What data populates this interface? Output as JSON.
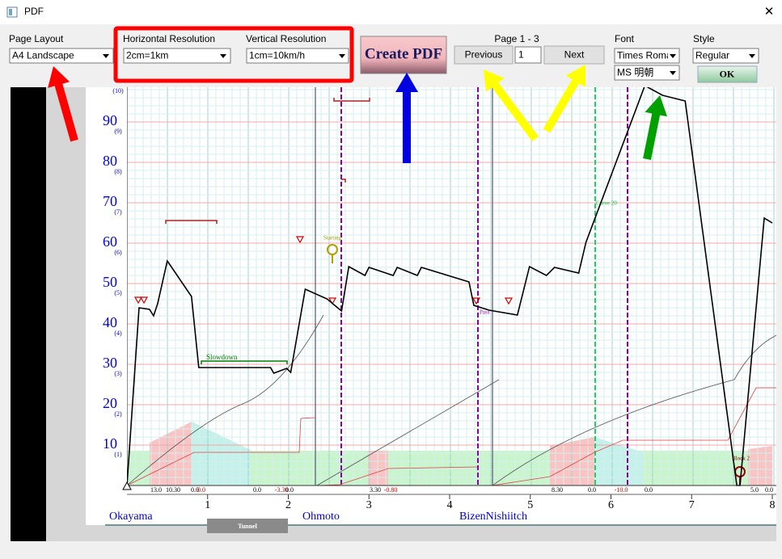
{
  "window": {
    "title": "PDF",
    "close": "✕"
  },
  "controls": {
    "page_layout": {
      "label": "Page Layout",
      "value": "A4 Landscape"
    },
    "horizontal_resolution": {
      "label": "Horizontal Resolution",
      "value": "2cm=1km"
    },
    "vertical_resolution": {
      "label": "Vertical Resolution",
      "value": "1cm=10km/h"
    },
    "create_pdf": "Create PDF",
    "page": {
      "label": "Page 1 - 3",
      "previous": "Previous",
      "number": "1",
      "next": "Next"
    },
    "font": {
      "label": "Font",
      "latin": "Times Roman",
      "japanese": "MS 明朝"
    },
    "style": {
      "label": "Style",
      "value": "Regular",
      "ok": "OK"
    }
  },
  "preview": {
    "xlim": [
      0,
      8
    ],
    "ylim": [
      0,
      100
    ],
    "xticks": [
      1,
      2,
      3,
      4,
      5,
      6,
      7,
      8
    ],
    "yticks": [
      10,
      20,
      30,
      40,
      50,
      60,
      70,
      80,
      90
    ],
    "ytick_notes": [
      "(1)",
      "(2)",
      "(3)",
      "(4)",
      "(5)",
      "(6)",
      "(7)",
      "(8)",
      "(9)",
      "(10)"
    ],
    "stations": [
      "Okayama",
      "Ohmoto",
      "BizenNishiitch"
    ],
    "tunnel": "Tunnel",
    "annotations": [
      {
        "text": "Slowdown",
        "color": "#008000"
      },
      {
        "text": "Starting",
        "color": "#a0a000"
      },
      {
        "text": "Curve 20",
        "color": "#00c040"
      },
      {
        "text": "Block 2",
        "color": "#800000"
      },
      {
        "text": "Pass",
        "color": "#9900cc"
      }
    ],
    "gradients": [
      {
        "text": "13.0",
        "color": "#000000"
      },
      {
        "text": "10.30",
        "color": "#000000"
      },
      {
        "text": "0.0",
        "color": "#000000"
      },
      {
        "text": "0.0",
        "color": "#cc0000"
      },
      {
        "text": "0.0",
        "color": "#000000"
      },
      {
        "text": "-3.30",
        "color": "#cc0000"
      },
      {
        "text": "0.0",
        "color": "#000000"
      },
      {
        "text": "3.30",
        "color": "#000000"
      },
      {
        "text": "-0.80",
        "color": "#cc0000"
      },
      {
        "text": "8.30",
        "color": "#000000"
      },
      {
        "text": "0.0",
        "color": "#000000"
      },
      {
        "text": "-10.0",
        "color": "#cc0000"
      },
      {
        "text": "0.0",
        "color": "#000000"
      },
      {
        "text": "5.0",
        "color": "#000000"
      },
      {
        "text": "0.0",
        "color": "#000000"
      }
    ],
    "speed_profile": {
      "color": "#000000",
      "x": [
        0,
        0.15,
        0.28,
        0.33,
        0.38,
        0.5,
        0.8,
        0.89,
        1.78,
        1.82,
        1.98,
        2.03,
        2.21,
        2.48,
        2.66,
        2.75,
        2.95,
        3.0,
        3.3,
        3.35,
        3.6,
        3.65,
        4.24,
        4.3,
        4.49,
        4.84,
        4.99,
        5.2,
        5.3,
        5.6,
        5.69,
        6.42,
        6.64,
        6.92,
        7.56,
        7.6,
        7.9,
        8
      ],
      "y": [
        0,
        44,
        43.6,
        42,
        45,
        55.6,
        46.8,
        29.2,
        29.2,
        27.8,
        29,
        28,
        48.6,
        46.2,
        43.2,
        54.2,
        52,
        54,
        52,
        54,
        52,
        54,
        50.4,
        44.6,
        43.4,
        42.2,
        54.2,
        52,
        54,
        52.6,
        60.2,
        99,
        96.6,
        95.2,
        0,
        0,
        66.2,
        65
      ]
    }
  }
}
